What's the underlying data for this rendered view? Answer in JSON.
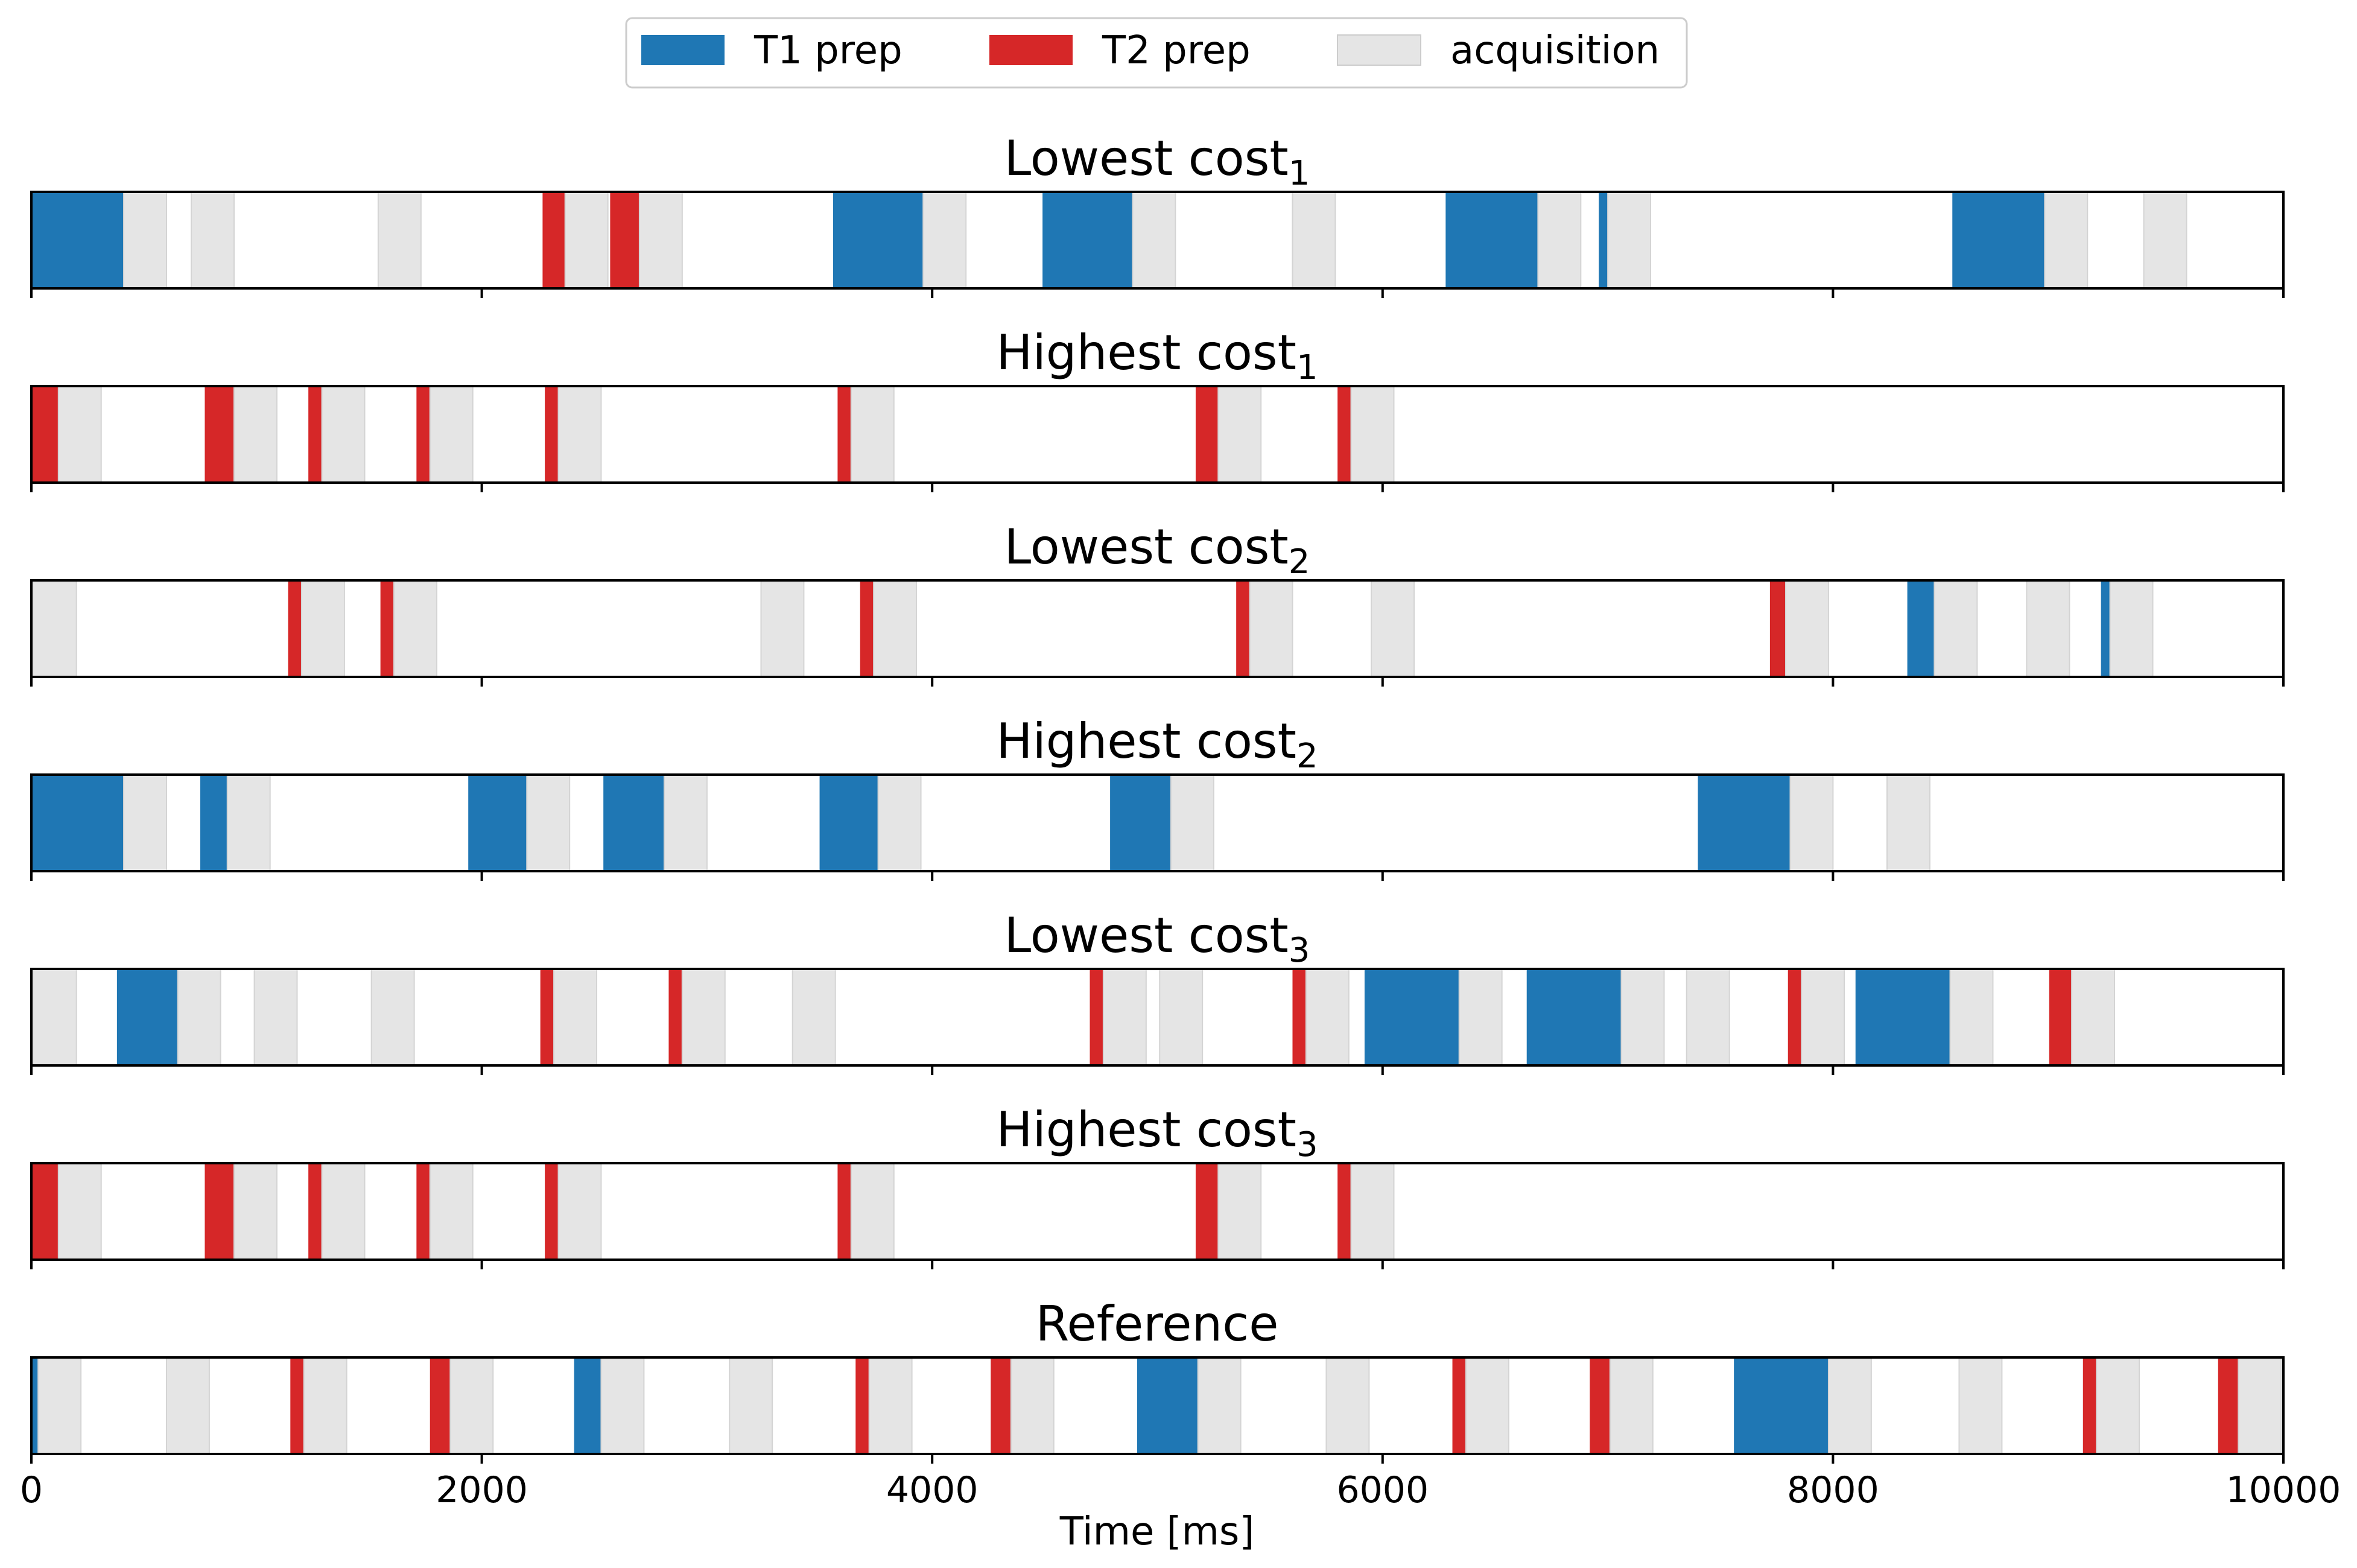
{
  "chart_data": {
    "type": "timeline",
    "xlabel": "Time [ms]",
    "xlim": [
      0,
      10000
    ],
    "xticks": [
      0,
      2000,
      4000,
      6000,
      8000,
      10000
    ],
    "legend": {
      "placement": "top-center",
      "entries": [
        {
          "key": "t1",
          "label": "T1 prep",
          "color": "#1f77b4"
        },
        {
          "key": "t2",
          "label": "T2 prep",
          "color": "#d62728"
        },
        {
          "key": "acq",
          "label": "acquisition",
          "color": "#e5e5e5"
        }
      ]
    },
    "panels": [
      {
        "title_text": "Lowest cost",
        "title_sub": "1",
        "segments": [
          [
            "t1",
            0,
            410
          ],
          [
            "acq",
            410,
            600
          ],
          [
            "acq",
            710,
            900
          ],
          [
            "acq",
            1540,
            1730
          ],
          [
            "t2",
            2270,
            2370
          ],
          [
            "acq",
            2370,
            2560
          ],
          [
            "t2",
            2570,
            2700
          ],
          [
            "acq",
            2700,
            2890
          ],
          [
            "t1",
            3560,
            3960
          ],
          [
            "acq",
            3960,
            4150
          ],
          [
            "t1",
            4490,
            4890
          ],
          [
            "acq",
            4890,
            5080
          ],
          [
            "acq",
            5600,
            5790
          ],
          [
            "t1",
            6280,
            6690
          ],
          [
            "acq",
            6690,
            6880
          ],
          [
            "t1",
            6960,
            7000
          ],
          [
            "acq",
            7000,
            7190
          ],
          [
            "t1",
            8530,
            8940
          ],
          [
            "acq",
            8940,
            9130
          ],
          [
            "acq",
            9380,
            9570
          ]
        ]
      },
      {
        "title_text": "Highest cost",
        "title_sub": "1",
        "segments": [
          [
            "t2",
            0,
            120
          ],
          [
            "acq",
            120,
            310
          ],
          [
            "t2",
            770,
            900
          ],
          [
            "acq",
            900,
            1090
          ],
          [
            "t2",
            1230,
            1290
          ],
          [
            "acq",
            1290,
            1480
          ],
          [
            "t2",
            1710,
            1770
          ],
          [
            "acq",
            1770,
            1960
          ],
          [
            "t2",
            2280,
            2340
          ],
          [
            "acq",
            2340,
            2530
          ],
          [
            "t2",
            3580,
            3640
          ],
          [
            "acq",
            3640,
            3830
          ],
          [
            "t2",
            5170,
            5270
          ],
          [
            "acq",
            5270,
            5460
          ],
          [
            "t2",
            5800,
            5860
          ],
          [
            "acq",
            5860,
            6050
          ]
        ]
      },
      {
        "title_text": "Lowest cost",
        "title_sub": "2",
        "segments": [
          [
            "acq",
            0,
            200
          ],
          [
            "t2",
            1140,
            1200
          ],
          [
            "acq",
            1200,
            1390
          ],
          [
            "t2",
            1550,
            1610
          ],
          [
            "acq",
            1610,
            1800
          ],
          [
            "acq",
            3240,
            3430
          ],
          [
            "t2",
            3680,
            3740
          ],
          [
            "acq",
            3740,
            3930
          ],
          [
            "t2",
            5350,
            5410
          ],
          [
            "acq",
            5410,
            5600
          ],
          [
            "acq",
            5950,
            6140
          ],
          [
            "t2",
            7720,
            7790
          ],
          [
            "acq",
            7790,
            7980
          ],
          [
            "t1",
            8330,
            8450
          ],
          [
            "acq",
            8450,
            8640
          ],
          [
            "acq",
            8860,
            9050
          ],
          [
            "t1",
            9190,
            9230
          ],
          [
            "acq",
            9230,
            9420
          ]
        ]
      },
      {
        "title_text": "Highest cost",
        "title_sub": "2",
        "segments": [
          [
            "t1",
            0,
            410
          ],
          [
            "acq",
            410,
            600
          ],
          [
            "t1",
            750,
            870
          ],
          [
            "acq",
            870,
            1060
          ],
          [
            "t1",
            1940,
            2200
          ],
          [
            "acq",
            2200,
            2390
          ],
          [
            "t1",
            2540,
            2810
          ],
          [
            "acq",
            2810,
            3000
          ],
          [
            "t1",
            3500,
            3760
          ],
          [
            "acq",
            3760,
            3950
          ],
          [
            "t1",
            4790,
            5060
          ],
          [
            "acq",
            5060,
            5250
          ],
          [
            "t1",
            7400,
            7810
          ],
          [
            "acq",
            7810,
            8000
          ],
          [
            "acq",
            8240,
            8430
          ]
        ]
      },
      {
        "title_text": "Lowest cost",
        "title_sub": "3",
        "segments": [
          [
            "acq",
            0,
            200
          ],
          [
            "t1",
            380,
            650
          ],
          [
            "acq",
            650,
            840
          ],
          [
            "acq",
            990,
            1180
          ],
          [
            "acq",
            1510,
            1700
          ],
          [
            "t2",
            2260,
            2320
          ],
          [
            "acq",
            2320,
            2510
          ],
          [
            "t2",
            2830,
            2890
          ],
          [
            "acq",
            2890,
            3080
          ],
          [
            "acq",
            3380,
            3570
          ],
          [
            "t2",
            4700,
            4760
          ],
          [
            "acq",
            4760,
            4950
          ],
          [
            "acq",
            5010,
            5200
          ],
          [
            "t2",
            5600,
            5660
          ],
          [
            "acq",
            5660,
            5850
          ],
          [
            "t1",
            5920,
            6340
          ],
          [
            "acq",
            6340,
            6530
          ],
          [
            "t1",
            6640,
            7060
          ],
          [
            "acq",
            7060,
            7250
          ],
          [
            "acq",
            7350,
            7540
          ],
          [
            "t2",
            7800,
            7860
          ],
          [
            "acq",
            7860,
            8050
          ],
          [
            "t1",
            8100,
            8520
          ],
          [
            "acq",
            8520,
            8710
          ],
          [
            "t2",
            8960,
            9060
          ],
          [
            "acq",
            9060,
            9250
          ]
        ]
      },
      {
        "title_text": "Highest cost",
        "title_sub": "3",
        "segments": [
          [
            "t2",
            0,
            120
          ],
          [
            "acq",
            120,
            310
          ],
          [
            "t2",
            770,
            900
          ],
          [
            "acq",
            900,
            1090
          ],
          [
            "t2",
            1230,
            1290
          ],
          [
            "acq",
            1290,
            1480
          ],
          [
            "t2",
            1710,
            1770
          ],
          [
            "acq",
            1770,
            1960
          ],
          [
            "t2",
            2280,
            2340
          ],
          [
            "acq",
            2340,
            2530
          ],
          [
            "t2",
            3580,
            3640
          ],
          [
            "acq",
            3640,
            3830
          ],
          [
            "t2",
            5170,
            5270
          ],
          [
            "acq",
            5270,
            5460
          ],
          [
            "t2",
            5800,
            5860
          ],
          [
            "acq",
            5860,
            6050
          ]
        ]
      },
      {
        "title_text": "Reference",
        "title_sub": "",
        "segments": [
          [
            "t1",
            0,
            30
          ],
          [
            "acq",
            30,
            220
          ],
          [
            "acq",
            600,
            790
          ],
          [
            "t2",
            1150,
            1210
          ],
          [
            "acq",
            1210,
            1400
          ],
          [
            "t2",
            1770,
            1860
          ],
          [
            "acq",
            1860,
            2050
          ],
          [
            "t1",
            2410,
            2530
          ],
          [
            "acq",
            2530,
            2720
          ],
          [
            "acq",
            3100,
            3290
          ],
          [
            "t2",
            3660,
            3720
          ],
          [
            "acq",
            3720,
            3910
          ],
          [
            "t2",
            4260,
            4350
          ],
          [
            "acq",
            4350,
            4540
          ],
          [
            "t1",
            4910,
            5180
          ],
          [
            "acq",
            5180,
            5370
          ],
          [
            "acq",
            5750,
            5940
          ],
          [
            "t2",
            6310,
            6370
          ],
          [
            "acq",
            6370,
            6560
          ],
          [
            "t2",
            6920,
            7010
          ],
          [
            "acq",
            7010,
            7200
          ],
          [
            "t1",
            7560,
            7980
          ],
          [
            "acq",
            7980,
            8170
          ],
          [
            "acq",
            8560,
            8750
          ],
          [
            "t2",
            9110,
            9170
          ],
          [
            "acq",
            9170,
            9360
          ],
          [
            "t2",
            9710,
            9800
          ],
          [
            "acq",
            9800,
            9990
          ]
        ]
      }
    ]
  }
}
